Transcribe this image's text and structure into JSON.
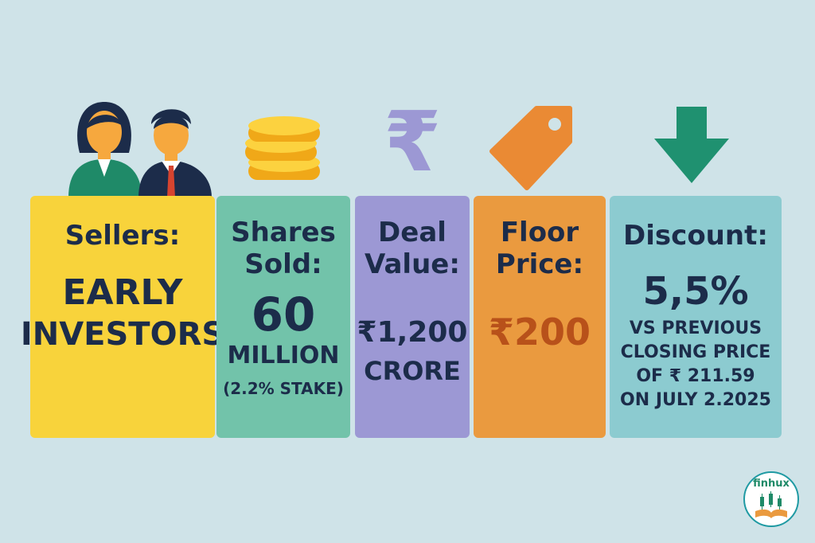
{
  "cards": {
    "sellers": {
      "label": "Sellers:",
      "line1": "EARLY",
      "line2": "INVESTORS"
    },
    "shares": {
      "label_line1": "Shares",
      "label_line2": "Sold:",
      "value": "60",
      "unit": "MILLION",
      "note": "(2.2% STAKE)"
    },
    "deal": {
      "label_line1": "Deal",
      "label_line2": "Value:",
      "value": "₹1,200",
      "unit": "CRORE"
    },
    "floor": {
      "label_line1": "Floor",
      "label_line2": "Price:",
      "value": "₹200"
    },
    "discount": {
      "label": "Discount:",
      "value": "5,5%",
      "note_line1": "VS PREVIOUS",
      "note_line2": "CLOSING PRICE",
      "note_line3": "OF ₹ 211.59",
      "note_line4": "ON JULY 2.2025"
    }
  },
  "icons": {
    "rupee_symbol": "₹"
  },
  "logo": {
    "text": "finhux"
  },
  "colors": {
    "background": "#cfe3e8",
    "sellers": "#f8d33b",
    "shares": "#72c3aa",
    "deal": "#9c98d4",
    "floor": "#ea9a3f",
    "discount": "#8ccbd0",
    "text": "#1c2c4a"
  }
}
